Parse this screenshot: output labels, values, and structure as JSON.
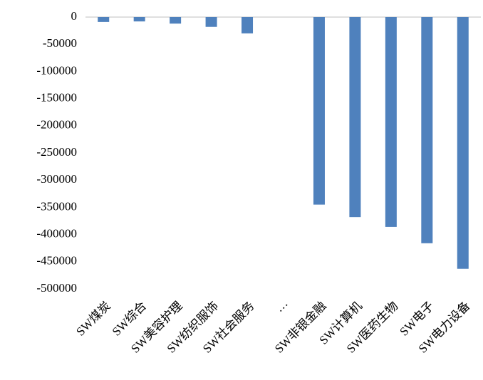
{
  "chart_data": {
    "type": "bar",
    "categories": [
      "SW煤炭",
      "SW综合",
      "SW美容护理",
      "SW纺织服饰",
      "SW社会服务",
      "···",
      "SW非银金融",
      "SW计算机",
      "SW医药生物",
      "SW电子",
      "SW电力设备"
    ],
    "values": [
      -9000,
      -8000,
      -12000,
      -18000,
      -30000,
      null,
      -345000,
      -368000,
      -386000,
      -416000,
      -463000
    ],
    "color": "#4f81bd",
    "ylim": [
      -500000,
      0
    ],
    "yticks": [
      0,
      -50000,
      -100000,
      -150000,
      -200000,
      -250000,
      -300000,
      -350000,
      -400000,
      -450000,
      -500000
    ],
    "grid": false
  }
}
